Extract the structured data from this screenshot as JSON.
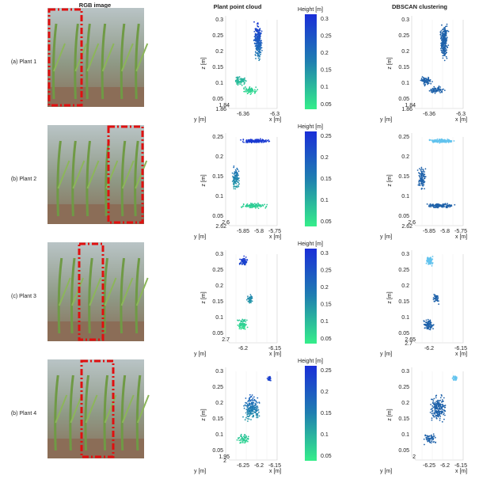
{
  "headers": {
    "rgb": "RGB image",
    "cloud": "Plant point cloud",
    "dbscan": "DBSCAN clustering"
  },
  "rows": [
    {
      "label": "(a) Plant 1",
      "cloud": {
        "z_label": "z [m]",
        "x_label": "x [m]",
        "y_label": "y [m]",
        "z_ticks": [
          "0.3",
          "0.25",
          "0.2",
          "0.15",
          "0.1",
          "0.05"
        ],
        "x_ticks": [
          "-6.36",
          "-6.3"
        ],
        "y_ticks": [
          "1.84",
          "1.86"
        ]
      },
      "colorbar": {
        "title": "Height [m]",
        "ticks": [
          "0.3",
          "0.25",
          "0.2",
          "0.15",
          "0.1",
          "0.05"
        ]
      },
      "dbscan": {
        "z_label": "z [m]",
        "x_label": "x [m]",
        "y_label": "y [m]",
        "z_ticks": [
          "0.3",
          "0.25",
          "0.2",
          "0.15",
          "0.1",
          "0.05"
        ],
        "x_ticks": [
          "-6.36",
          "-6.3"
        ],
        "y_ticks": [
          "1.84",
          "1.86"
        ]
      }
    },
    {
      "label": "(b) Plant 2",
      "cloud": {
        "z_label": "z [m]",
        "x_label": "x [m]",
        "y_label": "y [m]",
        "z_ticks": [
          "0.25",
          "0.2",
          "0.15",
          "0.1",
          "0.05"
        ],
        "x_ticks": [
          "-5.85",
          "-5.8",
          "-5.75"
        ],
        "y_ticks": [
          "2.6",
          "2.62"
        ]
      },
      "colorbar": {
        "title": "Height [m]",
        "ticks": [
          "0.25",
          "0.2",
          "0.15",
          "0.1",
          "0.05"
        ]
      },
      "dbscan": {
        "z_label": "z [m]",
        "x_label": "x [m]",
        "y_label": "y [m]",
        "z_ticks": [
          "0.25",
          "0.2",
          "0.15",
          "0.1",
          "0.05"
        ],
        "x_ticks": [
          "-5.85",
          "-5.8",
          "-5.75"
        ],
        "y_ticks": [
          "2.6",
          "2.62"
        ]
      }
    },
    {
      "label": "(c) Plant 3",
      "cloud": {
        "z_label": "z [m]",
        "x_label": "x [m]",
        "y_label": "y [m]",
        "z_ticks": [
          "0.3",
          "0.25",
          "0.2",
          "0.15",
          "0.1",
          "0.05"
        ],
        "x_ticks": [
          "-6.2",
          "-6.15"
        ],
        "y_ticks": [
          "2.7"
        ]
      },
      "colorbar": {
        "title": "Height [m]",
        "ticks": [
          "0.3",
          "0.25",
          "0.2",
          "0.15",
          "0.1",
          "0.05"
        ]
      },
      "dbscan": {
        "z_label": "z [m]",
        "x_label": "x [m]",
        "y_label": "y [m]",
        "z_ticks": [
          "0.3",
          "0.25",
          "0.2",
          "0.15",
          "0.1",
          "0.05"
        ],
        "x_ticks": [
          "-6.2",
          "-6.15"
        ],
        "y_ticks": [
          "2.65",
          "2.7"
        ]
      }
    },
    {
      "label": "(b) Plant 4",
      "cloud": {
        "z_label": "z [m]",
        "x_label": "x [m]",
        "y_label": "y [m]",
        "z_ticks": [
          "0.3",
          "0.25",
          "0.2",
          "0.15",
          "0.1",
          "0.05"
        ],
        "x_ticks": [
          "-6.25",
          "-6.2",
          "-6.15"
        ],
        "y_ticks": [
          "1.95",
          "2"
        ]
      },
      "colorbar": {
        "title": "Height [m]",
        "ticks": [
          "0.25",
          "0.2",
          "0.15",
          "0.1",
          "0.05"
        ]
      },
      "dbscan": {
        "z_label": "z [m]",
        "x_label": "x [m]",
        "y_label": "y [m]",
        "z_ticks": [
          "0.3",
          "0.25",
          "0.2",
          "0.15",
          "0.1",
          "0.05"
        ],
        "x_ticks": [
          "-6.25",
          "-6.2",
          "-6.15"
        ],
        "y_ticks": [
          "2"
        ]
      }
    }
  ]
}
